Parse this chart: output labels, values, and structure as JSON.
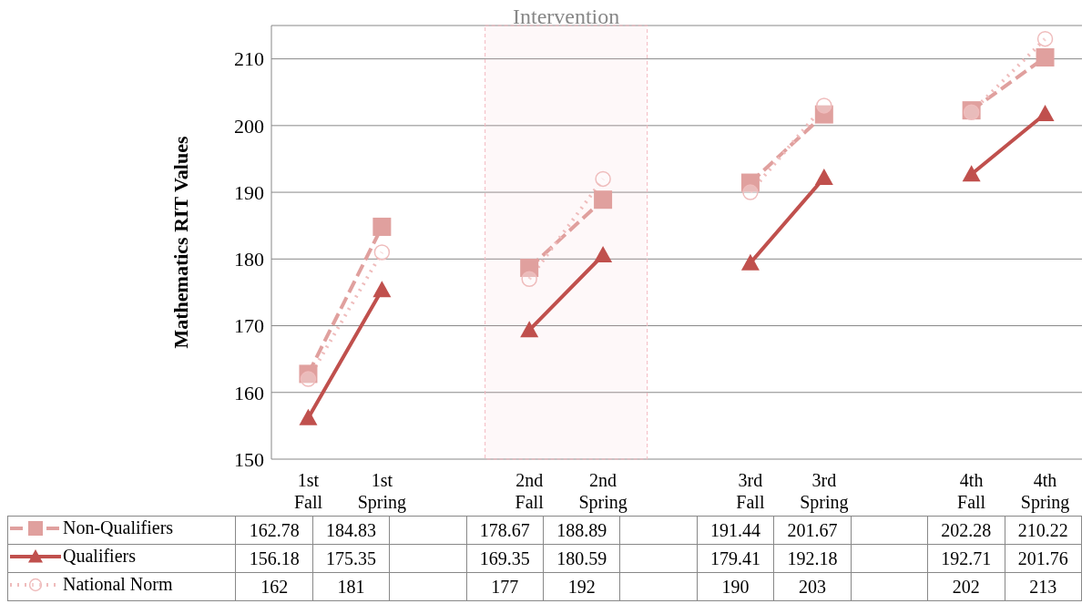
{
  "chart_data": {
    "type": "line",
    "ylabel": "Mathematics RIT Values",
    "categories": [
      "1st Fall",
      "1st Spring",
      null,
      "2nd Fall",
      "2nd Spring",
      null,
      "3rd Fall",
      "3rd Spring",
      null,
      "4th Fall",
      "4th Spring"
    ],
    "series": [
      {
        "name": "Non-Qualifiers",
        "color": "#e0a09e",
        "marker": "square",
        "line_style": "dashed",
        "values": [
          162.78,
          184.83,
          null,
          178.67,
          188.89,
          null,
          191.44,
          201.67,
          null,
          202.28,
          210.22
        ]
      },
      {
        "name": "Qualifiers",
        "color": "#c0504d",
        "marker": "triangle",
        "line_style": "solid",
        "values": [
          156.18,
          175.35,
          null,
          169.35,
          180.59,
          null,
          179.41,
          192.18,
          null,
          192.71,
          201.76
        ]
      },
      {
        "name": "National Norm",
        "color": "#efbcbc",
        "marker": "circle",
        "line_style": "dotted",
        "values": [
          162,
          181,
          null,
          177,
          192,
          null,
          190,
          203,
          null,
          202,
          213
        ]
      }
    ],
    "bands": [
      {
        "axis": "x",
        "from": "2nd Fall",
        "to": "2nd Spring",
        "label": "Intervention",
        "color": "#f4b8c0"
      }
    ],
    "ylim": [
      150,
      215
    ],
    "yticks": [
      150,
      160,
      170,
      180,
      190,
      200,
      210
    ],
    "grid": "y",
    "legend": "bottom",
    "data_labels": true
  }
}
